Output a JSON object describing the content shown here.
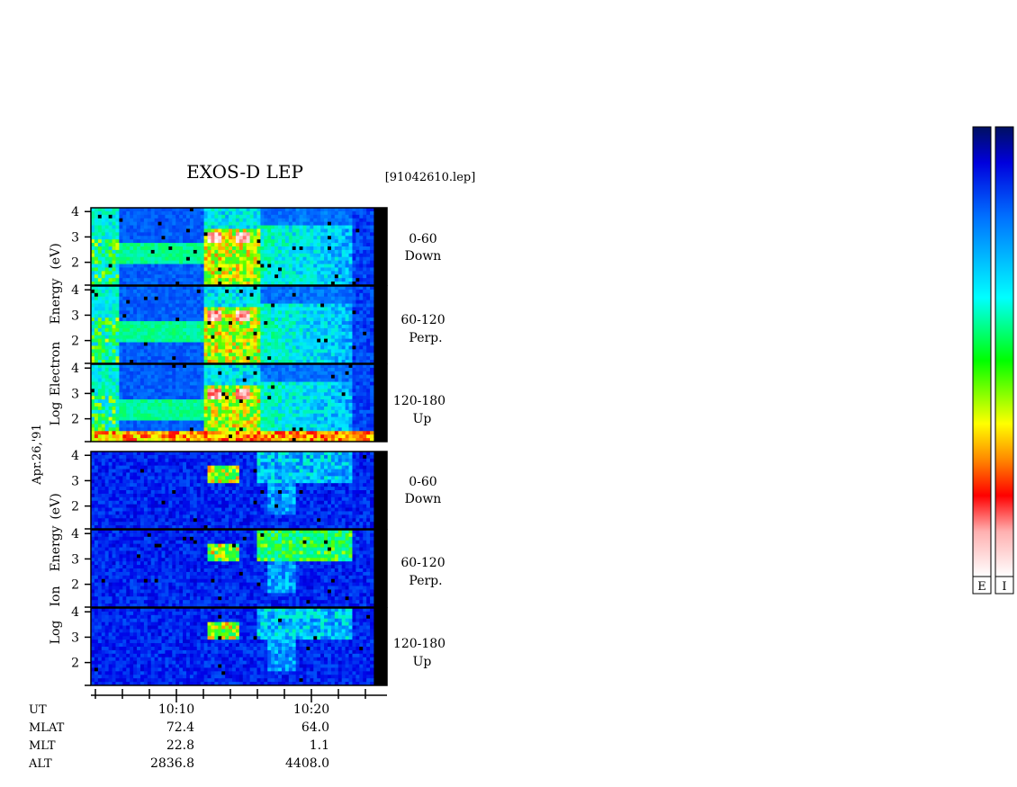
{
  "chart_data": {
    "type": "heatmap",
    "title": "EXOS-D LEP",
    "file_label": "[91042610.lep]",
    "date_label": "Apr.26,'91",
    "y_scale": "log",
    "yticks": [
      2,
      3,
      4
    ],
    "groups": [
      {
        "species": "Electron",
        "ylabel_lines": [
          "Log",
          "Electron",
          "Energy",
          "(eV)"
        ],
        "panels": [
          {
            "pitch_range": "0-60",
            "direction": "Down"
          },
          {
            "pitch_range": "60-120",
            "direction": "Perp."
          },
          {
            "pitch_range": "120-180",
            "direction": "Up"
          }
        ]
      },
      {
        "species": "Ion",
        "ylabel_lines": [
          "Log",
          "Ion",
          "Energy",
          "(eV)"
        ],
        "panels": [
          {
            "pitch_range": "0-60",
            "direction": "Down"
          },
          {
            "pitch_range": "60-120",
            "direction": "Perp."
          },
          {
            "pitch_range": "120-180",
            "direction": "Up"
          }
        ]
      }
    ],
    "xaxis": {
      "tick_labels": [
        "10:10",
        "10:20"
      ],
      "rows": [
        {
          "name": "UT",
          "values": [
            "10:10",
            "10:20"
          ]
        },
        {
          "name": "MLAT",
          "values": [
            "72.4",
            "64.0"
          ]
        },
        {
          "name": "MLT",
          "values": [
            "22.8",
            "1.1"
          ]
        },
        {
          "name": "ALT",
          "values": [
            "2836.8",
            "4408.0"
          ]
        }
      ]
    },
    "colorbars": [
      {
        "label": "E"
      },
      {
        "label": "I"
      }
    ],
    "colorscale": [
      "#ffffff",
      "#ffb0b0",
      "#ff0000",
      "#ff8800",
      "#ffff00",
      "#00ff00",
      "#00ffff",
      "#0088ff",
      "#0000ff",
      "#001060"
    ]
  }
}
